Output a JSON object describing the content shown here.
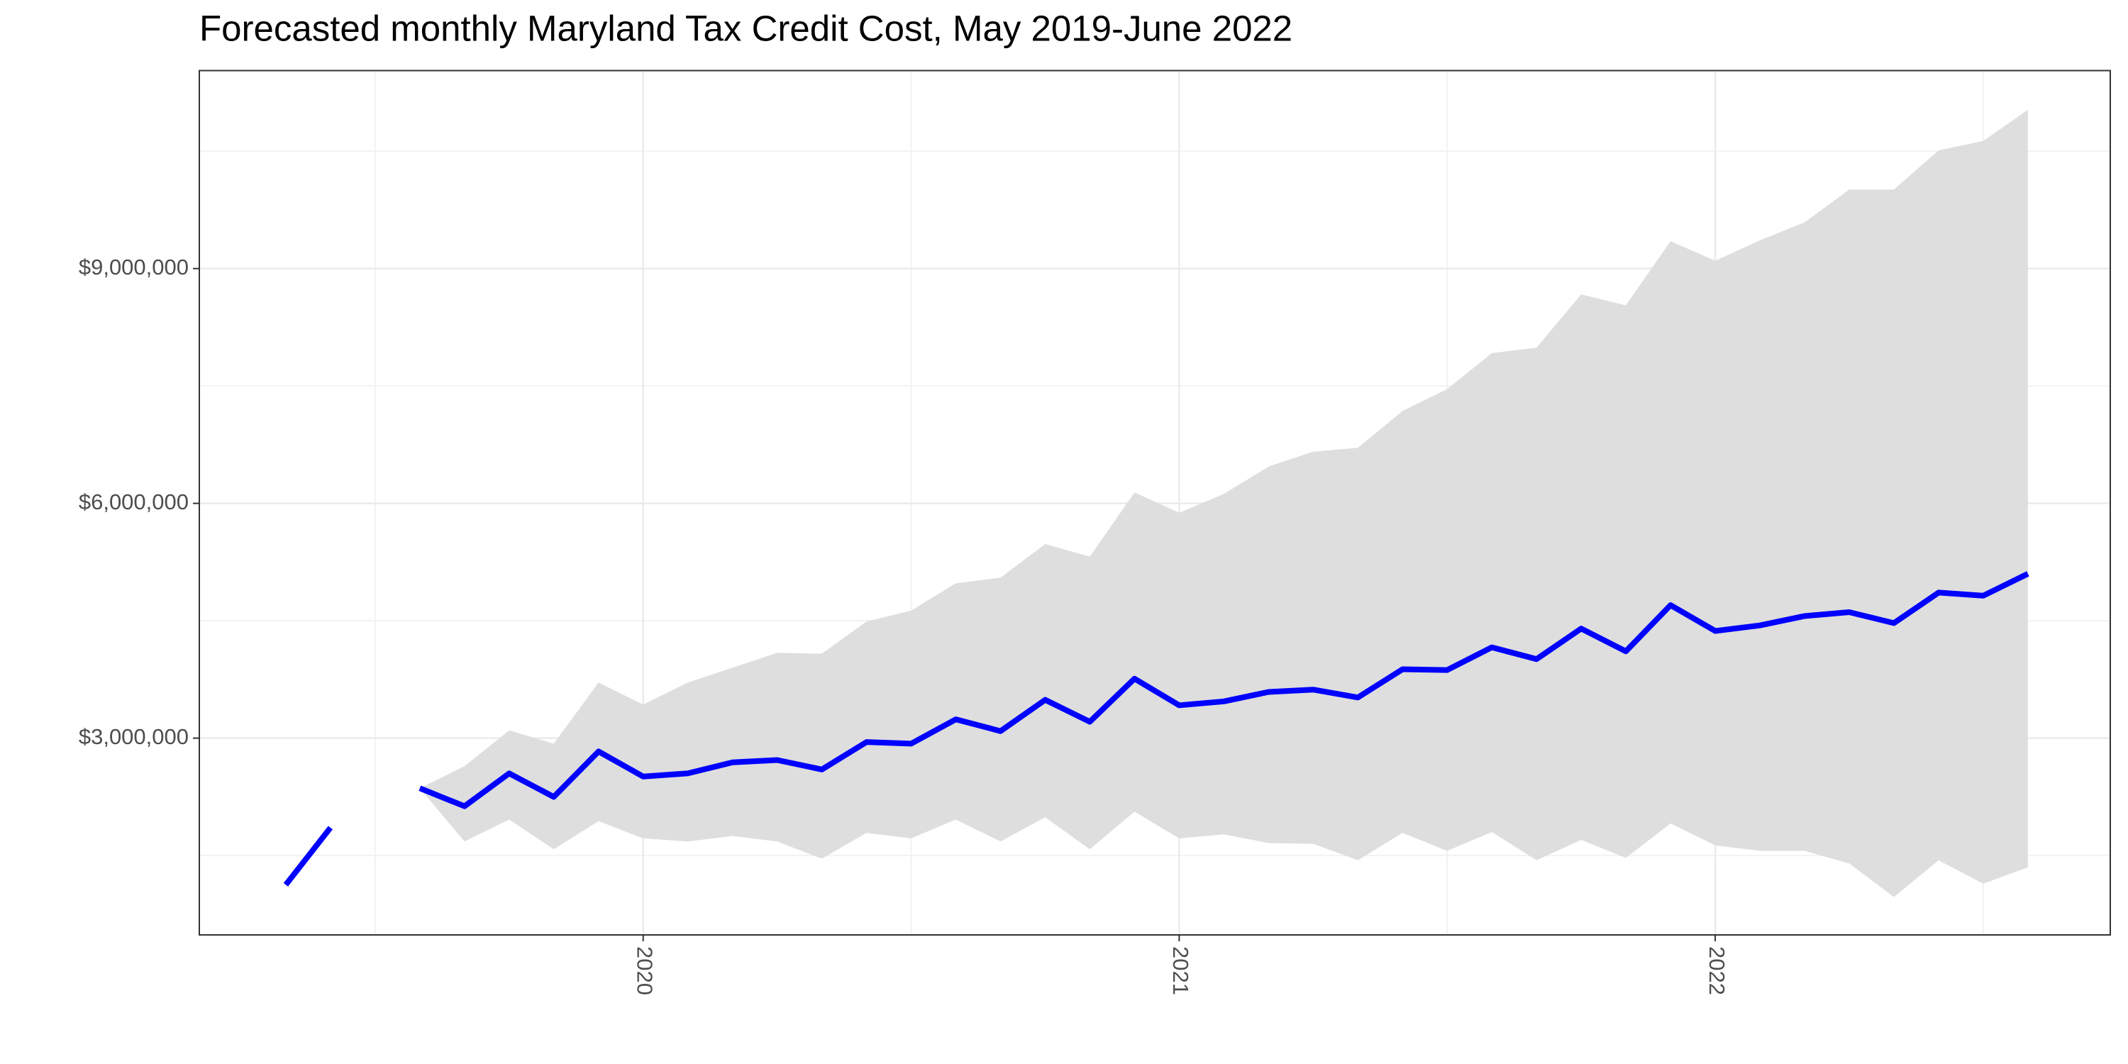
{
  "chart_data": {
    "type": "line",
    "title": "Forecasted monthly Maryland Tax Credit Cost, May 2019-June 2022",
    "x": [
      2019.3333,
      2019.4167,
      2019.5,
      2019.5833,
      2019.6667,
      2019.75,
      2019.8333,
      2019.9167,
      2020,
      2020.0833,
      2020.1667,
      2020.25,
      2020.3333,
      2020.4167,
      2020.5,
      2020.5833,
      2020.6667,
      2020.75,
      2020.8333,
      2020.9167,
      2021,
      2021.0833,
      2021.1667,
      2021.25,
      2021.3333,
      2021.4167,
      2021.5,
      2021.5833,
      2021.6667,
      2021.75,
      2021.8333,
      2021.9167,
      2022,
      2022.0833,
      2022.1667,
      2022.25,
      2022.3333,
      2022.4167,
      2022.5,
      2022.5833
    ],
    "series": [
      {
        "color": "#0000ff",
        "values": [
          1127000,
          1856000,
          null,
          2360000,
          2130000,
          2550000,
          2250000,
          2830000,
          2510000,
          2550000,
          2690000,
          2720000,
          2600000,
          2950000,
          2930000,
          3240000,
          3090000,
          3490000,
          3210000,
          3760000,
          3420000,
          3470000,
          3590000,
          3620000,
          3520000,
          3880000,
          3870000,
          4160000,
          4010000,
          4400000,
          4110000,
          4700000,
          4370000,
          4440000,
          4560000,
          4610000,
          4470000,
          4860000,
          4820000,
          5100000
        ]
      }
    ],
    "band": {
      "color": "#dedede",
      "upper": [
        null,
        null,
        null,
        2360000,
        2640000,
        3100000,
        2930000,
        3710000,
        3430000,
        3710000,
        3900000,
        4090000,
        4080000,
        4490000,
        4630000,
        4980000,
        5050000,
        5480000,
        5320000,
        6140000,
        5880000,
        6120000,
        6470000,
        6660000,
        6710000,
        7180000,
        7460000,
        7920000,
        7990000,
        8670000,
        8530000,
        9350000,
        9100000,
        9360000,
        9590000,
        10010000,
        10010000,
        10510000,
        10630000,
        11030000
      ],
      "lower": [
        null,
        null,
        null,
        2360000,
        1680000,
        1960000,
        1580000,
        1940000,
        1720000,
        1680000,
        1750000,
        1680000,
        1460000,
        1790000,
        1720000,
        1960000,
        1680000,
        1990000,
        1580000,
        2060000,
        1720000,
        1770000,
        1660000,
        1650000,
        1440000,
        1790000,
        1560000,
        1800000,
        1440000,
        1700000,
        1470000,
        1910000,
        1630000,
        1560000,
        1560000,
        1400000,
        970000,
        1440000,
        1140000,
        1350000
      ]
    },
    "xlim": [
      2019.172,
      2022.737
    ],
    "xticks": [
      2020,
      2021,
      2022
    ],
    "xticks_minor": [
      2019.5,
      2020.5,
      2021.5,
      2022.5
    ],
    "ylim": [
      486000,
      11530000
    ],
    "yticks": [
      {
        "value": 3000000,
        "label": "$3,000,000"
      },
      {
        "value": 6000000,
        "label": "$6,000,000"
      },
      {
        "value": 9000000,
        "label": "$9,000,000"
      }
    ],
    "yticks_minor": [
      1500000,
      4500000,
      7500000,
      10500000
    ],
    "grid": true
  }
}
